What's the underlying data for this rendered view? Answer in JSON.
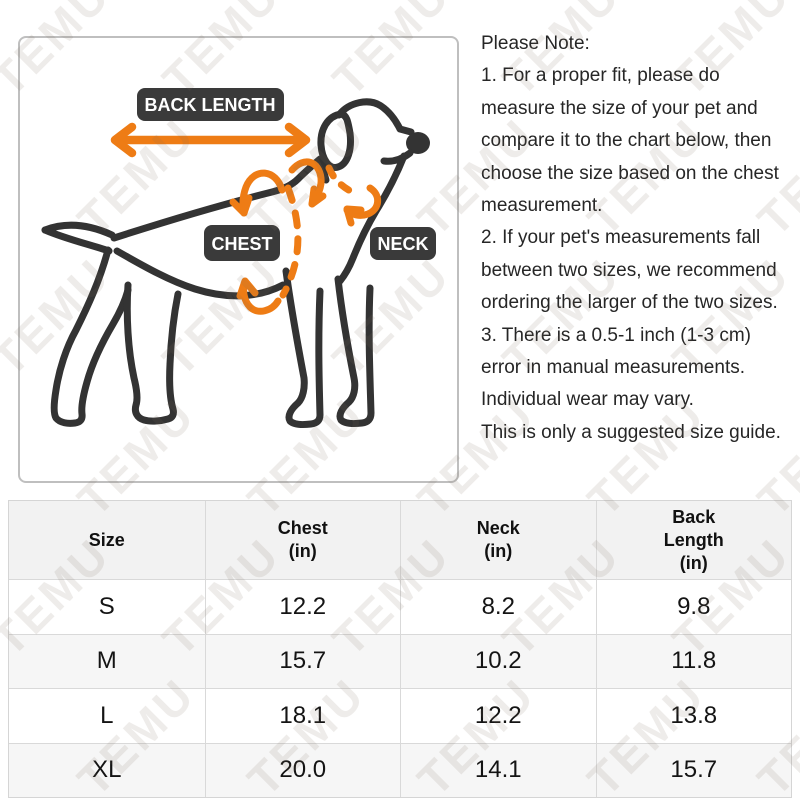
{
  "watermark": {
    "text": "TEMU"
  },
  "diagram": {
    "labels": {
      "back_length": "BACK LENGTH",
      "chest": "CHEST",
      "neck": "NECK"
    },
    "icons": [
      "back-length-double-arrow",
      "chest-girth-dashed-loop",
      "neck-girth-dashed-loop",
      "dog-outline"
    ]
  },
  "note": {
    "lines": [
      "Please Note:",
      "1. For a proper fit, please do",
      "measure the size of your pet and",
      "compare it to the chart below, then",
      "choose the size based on the chest",
      "measurement.",
      "2. If your pet's measurements fall",
      "between two sizes, we recommend",
      "ordering the larger of the two sizes.",
      "3. There is a 0.5-1 inch (1-3 cm)",
      "error in manual measurements.",
      "Individual wear may vary.",
      "This is only a suggested size guide."
    ]
  },
  "size_chart": {
    "columns": [
      [
        "Size"
      ],
      [
        "Chest",
        "(in)"
      ],
      [
        "Neck",
        "(in)"
      ],
      [
        "Back",
        "Length",
        "(in)"
      ]
    ],
    "rows": [
      {
        "size": "S",
        "chest_in": "12.2",
        "neck_in": "8.2",
        "back_length_in": "9.8"
      },
      {
        "size": "M",
        "chest_in": "15.7",
        "neck_in": "10.2",
        "back_length_in": "11.8"
      },
      {
        "size": "L",
        "chest_in": "18.1",
        "neck_in": "12.2",
        "back_length_in": "13.8"
      },
      {
        "size": "XL",
        "chest_in": "20.0",
        "neck_in": "14.1",
        "back_length_in": "15.7"
      }
    ]
  },
  "colors": {
    "accent_orange": "#ee7c15",
    "dog_outline": "#333333",
    "label_bg": "#3a3a3a",
    "label_text": "#ffffff",
    "table_header_bg": "#f2f2f2",
    "table_alt_row_bg": "#f6f6f6",
    "table_border": "#d9d9d9",
    "diagram_border": "#bfbfbf"
  }
}
